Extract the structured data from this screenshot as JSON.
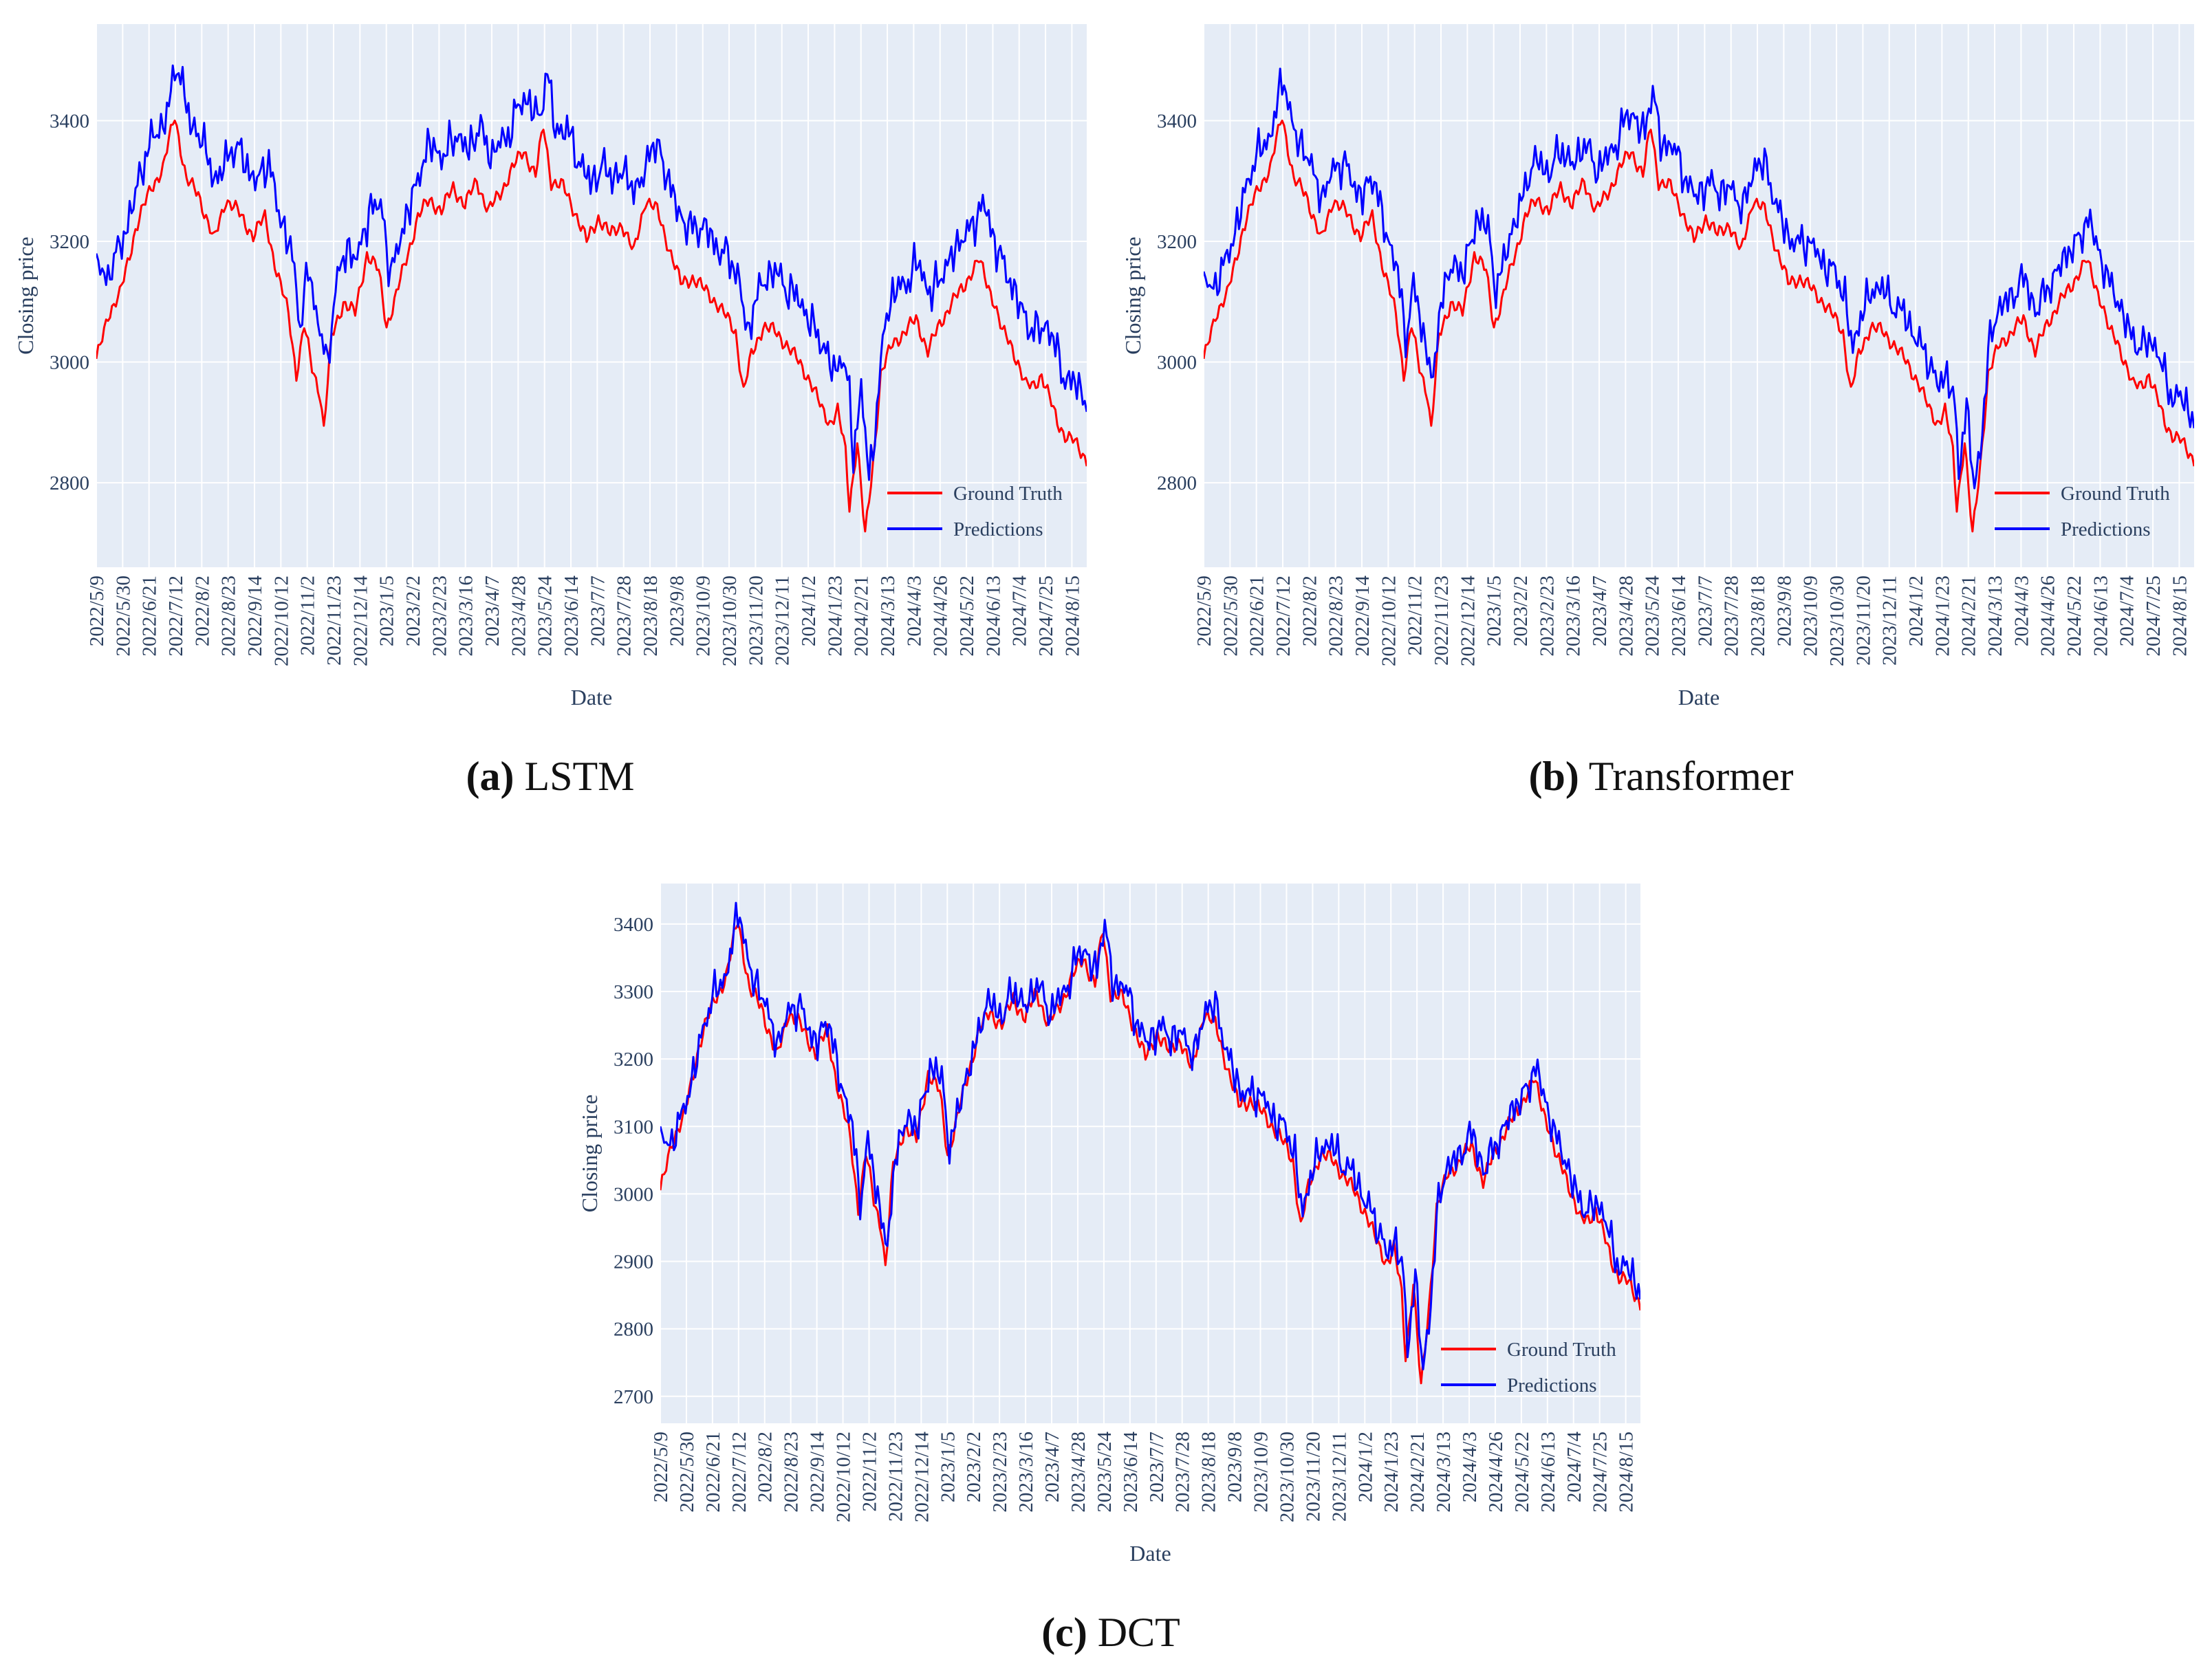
{
  "figure": {
    "captions": [
      {
        "letter": "(a)",
        "name": "LSTM"
      },
      {
        "letter": "(b)",
        "name": "Transformer"
      },
      {
        "letter": "(c)",
        "name": "DCT"
      }
    ]
  },
  "colors": {
    "plot_bg": "#e5ecf6",
    "grid": "#ffffff",
    "ground_truth": "#ff0000",
    "predictions": "#0000ff",
    "text": "#2a3f5f"
  },
  "date_ticks": [
    "2022/5/9",
    "2022/5/30",
    "2022/6/21",
    "2022/7/12",
    "2022/8/2",
    "2022/8/23",
    "2022/9/14",
    "2022/10/12",
    "2022/11/2",
    "2022/11/23",
    "2022/12/14",
    "2023/1/5",
    "2023/2/2",
    "2023/2/23",
    "2023/3/16",
    "2023/4/7",
    "2023/4/28",
    "2023/5/24",
    "2023/6/14",
    "2023/7/7",
    "2023/7/28",
    "2023/8/18",
    "2023/9/8",
    "2023/10/9",
    "2023/10/30",
    "2023/11/20",
    "2023/12/11",
    "2024/1/2",
    "2024/1/23",
    "2024/2/21",
    "2024/3/13",
    "2024/4/3",
    "2024/4/26",
    "2024/5/22",
    "2024/6/13",
    "2024/7/4",
    "2024/7/25",
    "2024/8/15"
  ],
  "ground_truth_anchors": [
    [
      0,
      3000
    ],
    [
      6,
      3080
    ],
    [
      12,
      3110
    ],
    [
      20,
      3220
    ],
    [
      28,
      3290
    ],
    [
      34,
      3320
    ],
    [
      40,
      3410
    ],
    [
      46,
      3300
    ],
    [
      52,
      3280
    ],
    [
      60,
      3200
    ],
    [
      66,
      3270
    ],
    [
      72,
      3250
    ],
    [
      80,
      3210
    ],
    [
      86,
      3240
    ],
    [
      92,
      3150
    ],
    [
      98,
      3080
    ],
    [
      102,
      2980
    ],
    [
      106,
      3060
    ],
    [
      110,
      2990
    ],
    [
      114,
      2950
    ],
    [
      116,
      2890
    ],
    [
      120,
      3040
    ],
    [
      126,
      3100
    ],
    [
      132,
      3080
    ],
    [
      138,
      3180
    ],
    [
      144,
      3150
    ],
    [
      148,
      3060
    ],
    [
      152,
      3100
    ],
    [
      158,
      3170
    ],
    [
      164,
      3240
    ],
    [
      170,
      3270
    ],
    [
      176,
      3250
    ],
    [
      182,
      3290
    ],
    [
      188,
      3260
    ],
    [
      194,
      3300
    ],
    [
      200,
      3250
    ],
    [
      206,
      3280
    ],
    [
      212,
      3320
    ],
    [
      218,
      3350
    ],
    [
      224,
      3310
    ],
    [
      228,
      3390
    ],
    [
      232,
      3300
    ],
    [
      238,
      3290
    ],
    [
      244,
      3250
    ],
    [
      250,
      3200
    ],
    [
      256,
      3240
    ],
    [
      262,
      3210
    ],
    [
      268,
      3230
    ],
    [
      274,
      3180
    ],
    [
      280,
      3270
    ],
    [
      286,
      3250
    ],
    [
      292,
      3190
    ],
    [
      298,
      3130
    ],
    [
      304,
      3140
    ],
    [
      310,
      3120
    ],
    [
      316,
      3100
    ],
    [
      320,
      3080
    ],
    [
      326,
      3050
    ],
    [
      330,
      2950
    ],
    [
      334,
      3010
    ],
    [
      340,
      3060
    ],
    [
      346,
      3050
    ],
    [
      352,
      3030
    ],
    [
      358,
      3000
    ],
    [
      364,
      2970
    ],
    [
      370,
      2920
    ],
    [
      374,
      2900
    ],
    [
      378,
      2920
    ],
    [
      382,
      2850
    ],
    [
      384,
      2760
    ],
    [
      388,
      2870
    ],
    [
      392,
      2710
    ],
    [
      396,
      2830
    ],
    [
      400,
      2980
    ],
    [
      406,
      3030
    ],
    [
      412,
      3050
    ],
    [
      418,
      3070
    ],
    [
      424,
      3020
    ],
    [
      430,
      3060
    ],
    [
      436,
      3100
    ],
    [
      442,
      3120
    ],
    [
      446,
      3150
    ],
    [
      450,
      3170
    ],
    [
      454,
      3130
    ],
    [
      458,
      3100
    ],
    [
      462,
      3050
    ],
    [
      466,
      3030
    ],
    [
      470,
      3000
    ],
    [
      474,
      2960
    ],
    [
      478,
      2960
    ],
    [
      482,
      2980
    ],
    [
      486,
      2940
    ],
    [
      490,
      2900
    ],
    [
      494,
      2880
    ],
    [
      498,
      2870
    ],
    [
      502,
      2850
    ],
    [
      505,
      2840
    ]
  ],
  "charts": [
    {
      "name": "LSTM",
      "chart_data": {
        "type": "line",
        "title": "",
        "xlabel": "Date",
        "ylabel": "Closing price",
        "x_ticks": "date_ticks",
        "ylim": [
          2660,
          3560
        ],
        "y_ticks": [
          2800,
          3000,
          3200,
          3400
        ],
        "legend": {
          "position": "bottom-right",
          "entries": [
            "Ground Truth",
            "Predictions"
          ]
        },
        "series": [
          {
            "name": "Ground Truth",
            "color": "#ff0000",
            "values_from": "ground_truth_anchors"
          },
          {
            "name": "Predictions",
            "color": "#0000ff",
            "derived_from": "ground_truth_anchors",
            "offset": 90,
            "noise": 32,
            "lag": 2,
            "start": 3180
          }
        ]
      }
    },
    {
      "name": "Transformer",
      "chart_data": {
        "type": "line",
        "title": "",
        "xlabel": "Date",
        "ylabel": "Closing price",
        "x_ticks": "date_ticks",
        "ylim": [
          2660,
          3560
        ],
        "y_ticks": [
          2800,
          3000,
          3200,
          3400
        ],
        "legend": {
          "position": "bottom-right",
          "entries": [
            "Ground Truth",
            "Predictions"
          ]
        },
        "series": [
          {
            "name": "Ground Truth",
            "color": "#ff0000",
            "values_from": "ground_truth_anchors"
          },
          {
            "name": "Predictions",
            "color": "#0000ff",
            "derived_from": "ground_truth_anchors",
            "offset": 65,
            "noise": 30,
            "lag": 1,
            "start": 3150
          }
        ]
      }
    },
    {
      "name": "DCT",
      "chart_data": {
        "type": "line",
        "title": "",
        "xlabel": "Date",
        "ylabel": "Closing price",
        "x_ticks": "date_ticks",
        "ylim": [
          2660,
          3460
        ],
        "y_ticks": [
          2700,
          2800,
          2900,
          3000,
          3100,
          3200,
          3300,
          3400
        ],
        "legend": {
          "position": "bottom-right",
          "entries": [
            "Ground Truth",
            "Predictions"
          ]
        },
        "series": [
          {
            "name": "Ground Truth",
            "color": "#ff0000",
            "values_from": "ground_truth_anchors"
          },
          {
            "name": "Predictions",
            "color": "#0000ff",
            "derived_from": "ground_truth_anchors",
            "offset": 15,
            "noise": 25,
            "lag": 1,
            "start": 3100
          }
        ]
      }
    }
  ]
}
